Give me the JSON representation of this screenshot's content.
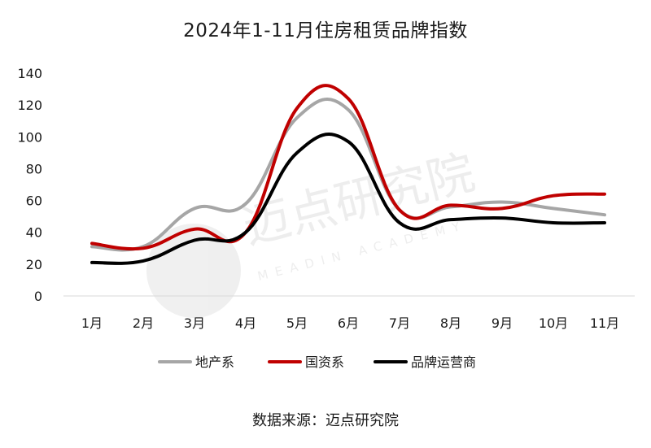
{
  "chart_data": {
    "type": "line",
    "title": "2024年1-11月住房租赁品牌指数",
    "categories": [
      "1月",
      "2月",
      "3月",
      "4月",
      "5月",
      "6月",
      "7月",
      "8月",
      "9月",
      "10月",
      "11月"
    ],
    "ylim": [
      0,
      140
    ],
    "yticks": [
      0,
      20,
      40,
      60,
      80,
      100,
      120,
      140
    ],
    "grid": false,
    "legend_position": "bottom",
    "series": [
      {
        "name": "地产系",
        "color": "#a6a6a6",
        "values": [
          31,
          31,
          55,
          58,
          112,
          117,
          54,
          56,
          59,
          55,
          51
        ]
      },
      {
        "name": "国资系",
        "color": "#c00000",
        "values": [
          33,
          30,
          42,
          40,
          118,
          124,
          54,
          57,
          55,
          63,
          64
        ]
      },
      {
        "name": "品牌运营商",
        "color": "#000000",
        "values": [
          21,
          22,
          35,
          40,
          90,
          97,
          46,
          48,
          49,
          46,
          46
        ]
      }
    ]
  },
  "source_text": "数据来源：迈点研究院",
  "watermark": {
    "cn": "迈点研究院",
    "en": "MEADIN ACADEMY"
  }
}
